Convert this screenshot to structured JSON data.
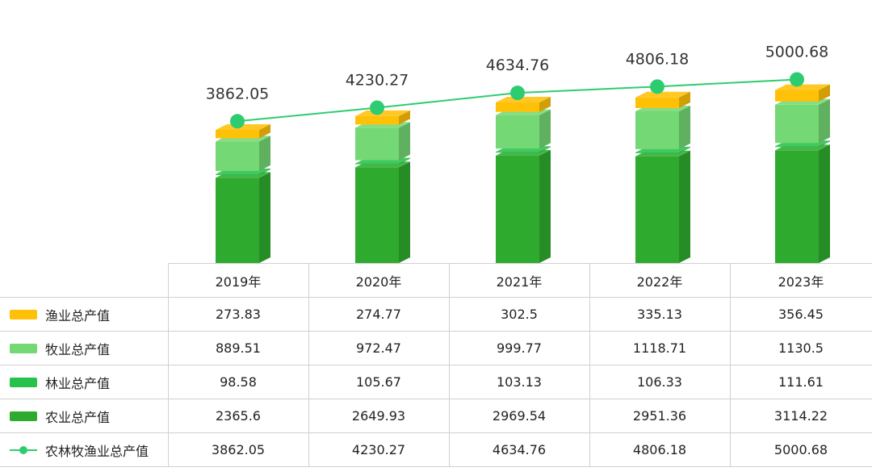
{
  "chart_data": {
    "type": "bar",
    "stacked": true,
    "categories": [
      "2019年",
      "2020年",
      "2021年",
      "2022年",
      "2023年"
    ],
    "series": [
      {
        "name": "农业总产值",
        "values": [
          2365.6,
          2649.93,
          2969.54,
          2951.36,
          3114.22
        ],
        "color": "#2eab2e"
      },
      {
        "name": "林业总产值",
        "values": [
          98.58,
          105.67,
          103.13,
          106.33,
          111.61
        ],
        "color": "#27c24c"
      },
      {
        "name": "牧业总产值",
        "values": [
          889.51,
          972.47,
          999.77,
          1118.71,
          1130.5
        ],
        "color": "#74d874"
      },
      {
        "name": "渔业总产值",
        "values": [
          273.83,
          274.77,
          302.5,
          335.13,
          356.45
        ],
        "color": "#ffc107"
      }
    ],
    "line_series": {
      "name": "农林牧渔业总产值",
      "values": [
        3862.05,
        4230.27,
        4634.76,
        4806.18,
        5000.68
      ],
      "labels": [
        "3862.05",
        "4230.27",
        "4634.76",
        "4806.18",
        "5000.68"
      ],
      "color": "#2ecc71"
    }
  },
  "table": {
    "headers": [
      "2019年",
      "2020年",
      "2021年",
      "2022年",
      "2023年"
    ],
    "rows": [
      {
        "label": "渔业总产值",
        "legend": "swatch",
        "color": "#ffc107",
        "values": [
          "273.83",
          "274.77",
          "302.5",
          "335.13",
          "356.45"
        ]
      },
      {
        "label": "牧业总产值",
        "legend": "swatch",
        "color": "#74d874",
        "values": [
          "889.51",
          "972.47",
          "999.77",
          "1118.71",
          "1130.5"
        ]
      },
      {
        "label": "林业总产值",
        "legend": "swatch",
        "color": "#27c24c",
        "values": [
          "98.58",
          "105.67",
          "103.13",
          "106.33",
          "111.61"
        ]
      },
      {
        "label": "农业总产值",
        "legend": "swatch",
        "color": "#2eab2e",
        "values": [
          "2365.6",
          "2649.93",
          "2969.54",
          "2951.36",
          "3114.22"
        ]
      },
      {
        "label": "农林牧渔业总产值",
        "legend": "line",
        "color": "#2ecc71",
        "values": [
          "3862.05",
          "4230.27",
          "4634.76",
          "4806.18",
          "5000.68"
        ]
      }
    ]
  }
}
